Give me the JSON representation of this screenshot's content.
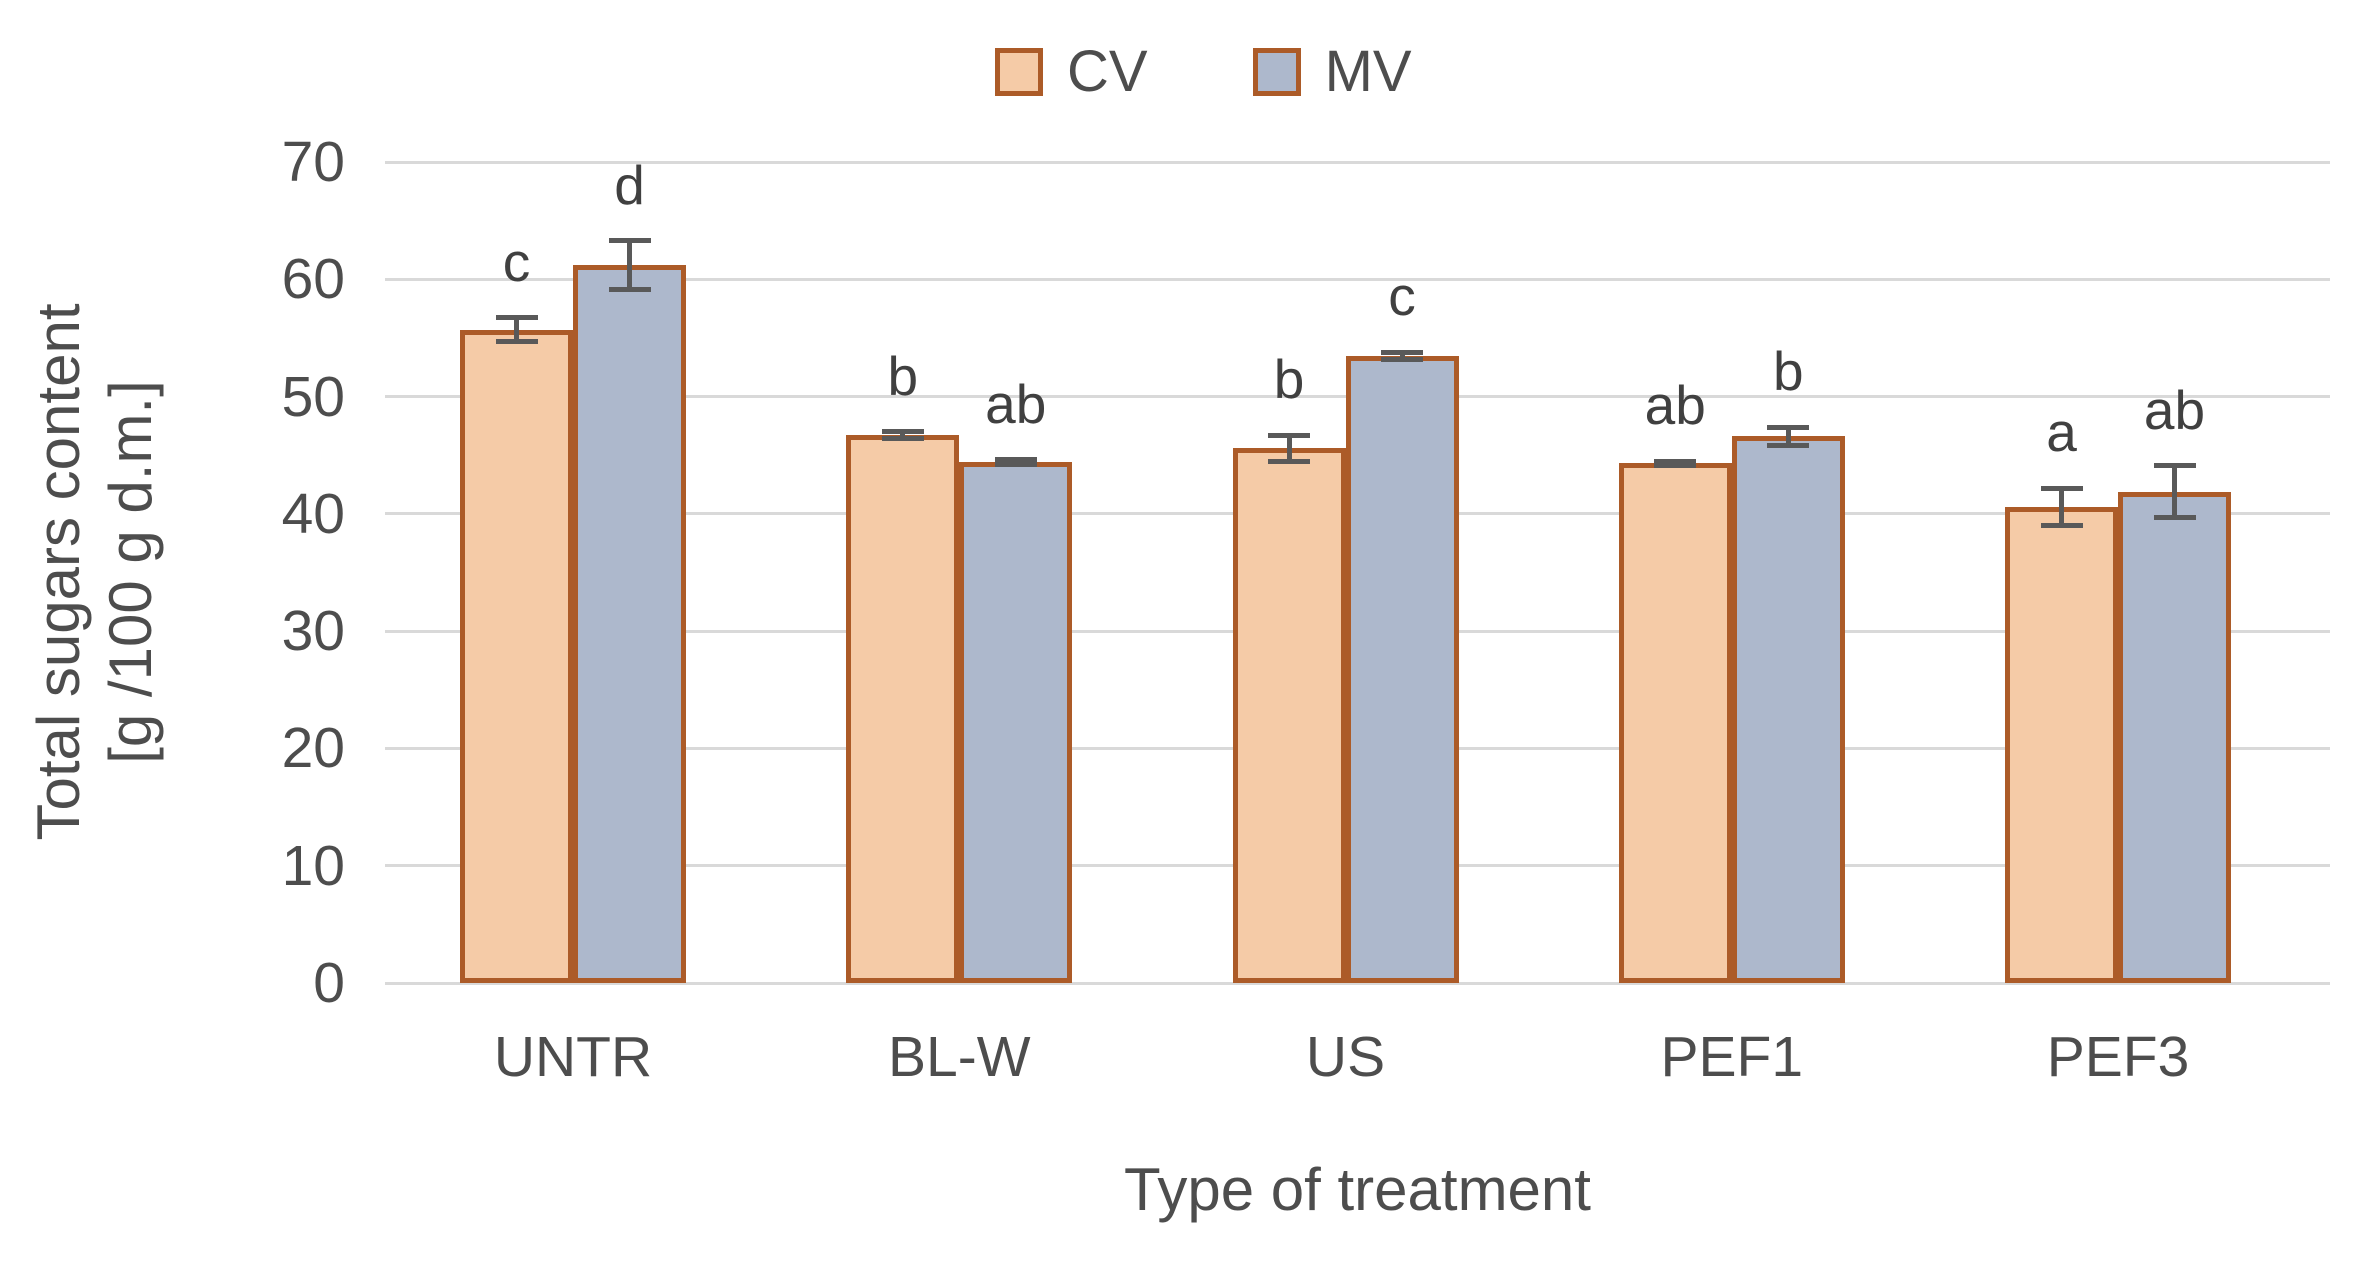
{
  "chart_data": {
    "type": "bar",
    "title": "",
    "categories": [
      "UNTR",
      "BL-W",
      "US",
      "PEF1",
      "PEF3"
    ],
    "series": [
      {
        "name": "CV",
        "fill": "#F5CBA7",
        "border": "#AC5B28",
        "values": [
          55.7,
          46.7,
          45.6,
          44.3,
          40.6
        ],
        "errors": [
          1.0,
          0.3,
          1.1,
          0.2,
          1.6
        ],
        "sig_letters": [
          "c",
          "b",
          "b",
          "ab",
          "a"
        ]
      },
      {
        "name": "MV",
        "fill": "#ADB8CC",
        "border": "#AC5B28",
        "values": [
          61.2,
          44.4,
          53.5,
          46.6,
          41.9
        ],
        "errors": [
          2.1,
          0.2,
          0.3,
          0.8,
          2.2
        ],
        "sig_letters": [
          "d",
          "ab",
          "c",
          "b",
          "ab"
        ]
      }
    ],
    "xlabel": "Type of treatment",
    "ylabel_line1": "Total sugars content",
    "ylabel_line2": "[g /100 g d.m.]",
    "ylim": [
      0,
      70
    ],
    "ytick_step": 10,
    "yticks": [
      0,
      10,
      20,
      30,
      40,
      50,
      60,
      70
    ],
    "grid": "horizontal",
    "legend_position": "top",
    "error_bars": true
  },
  "colors": {
    "gridline": "#D9D9D9",
    "axis_text": "#4D4D4D",
    "letter_text": "#404040",
    "error_bar": "#595959",
    "background": "#FFFFFF"
  }
}
